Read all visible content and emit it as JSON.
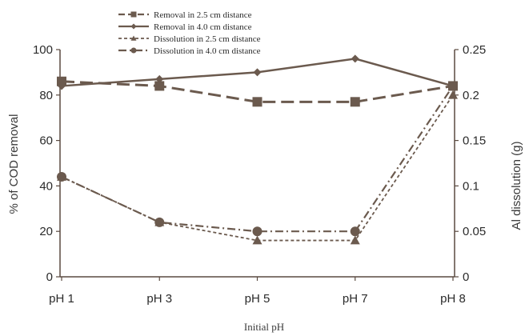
{
  "chart_data": {
    "type": "line",
    "categories": [
      "pH 1",
      "pH 3",
      "pH 5",
      "pH 7",
      "pH 8"
    ],
    "xlabel": "Initial pH",
    "ylabel_left": "% of COD removal",
    "ylabel_right": "Al dissolution (g)",
    "ylim_left": [
      0,
      100
    ],
    "ylim_right": [
      0,
      0.25
    ],
    "yticks_left": [
      "0",
      "20",
      "40",
      "60",
      "80",
      "100"
    ],
    "yticks_right": [
      "0",
      "0.05",
      "0.1",
      "0.15",
      "0.2",
      "0.25"
    ],
    "grid": false,
    "legend_position": "top-center",
    "series": [
      {
        "name": "Removal in 2.5 cm distance",
        "axis": "left",
        "marker": "square",
        "line_style": "long-dash",
        "values": [
          86,
          84,
          77,
          77,
          84
        ]
      },
      {
        "name": "Removal in 4.0 cm distance",
        "axis": "left",
        "marker": "diamond",
        "line_style": "solid",
        "values": [
          84,
          87,
          90,
          96,
          84
        ]
      },
      {
        "name": "Dissolution in 2.5 cm distance",
        "axis": "right",
        "marker": "triangle",
        "line_style": "short-dash",
        "values": [
          0.11,
          0.06,
          0.04,
          0.04,
          0.2
        ]
      },
      {
        "name": "Dissolution in 4.0 cm distance",
        "axis": "right",
        "marker": "circle",
        "line_style": "dash-dot",
        "values": [
          0.11,
          0.06,
          0.05,
          0.05,
          0.21
        ]
      }
    ],
    "colors": {
      "line": "#6b5a4e",
      "text": "#2b2b2b"
    }
  }
}
